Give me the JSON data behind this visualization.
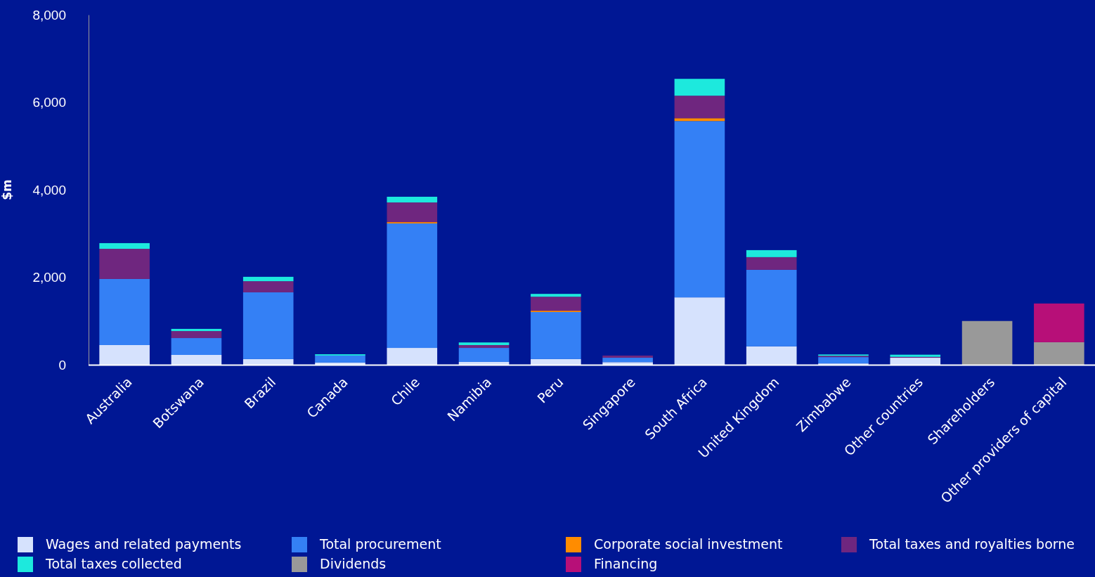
{
  "chart_data": {
    "type": "bar",
    "stacked": true,
    "ylabel": "$m",
    "ylim": [
      0,
      8000
    ],
    "yticks": [
      0,
      {
        "value": 2000,
        "label": "2,000"
      },
      {
        "value": 4000,
        "label": "4,000"
      },
      {
        "value": 6000,
        "label": "6,000"
      },
      {
        "value": 8000,
        "label": "8,000"
      }
    ],
    "grid": false,
    "legend": "bottom",
    "categories": [
      "Australia",
      "Botswana",
      "Brazil",
      "Canada",
      "Chile",
      "Namibia",
      "Peru",
      "Singapore",
      "South Africa",
      "United Kingdom",
      "Zimbabwe",
      "Other countries",
      "Shareholders",
      "Other providers of capital"
    ],
    "series": [
      {
        "name": "Wages and related payments",
        "color": "#d6e2fd",
        "values": [
          450,
          225,
          130,
          50,
          385,
          65,
          130,
          60,
          1540,
          420,
          30,
          160,
          null,
          null
        ]
      },
      {
        "name": "Total procurement",
        "color": "#3480f5",
        "values": [
          1510,
          385,
          1525,
          160,
          2845,
          320,
          1075,
          100,
          4030,
          1750,
          145,
          null,
          null,
          null
        ]
      },
      {
        "name": "Corporate social investment",
        "color": "#ff8c00",
        "values": [
          null,
          null,
          null,
          null,
          30,
          null,
          30,
          null,
          65,
          null,
          null,
          null,
          null,
          null
        ]
      },
      {
        "name": "Total taxes and royalties borne",
        "color": "#6f267f",
        "values": [
          690,
          160,
          255,
          null,
          450,
          65,
          320,
          50,
          515,
          290,
          30,
          20,
          null,
          null
        ]
      },
      {
        "name": "Total taxes collected",
        "color": "#1de9dd",
        "values": [
          130,
          50,
          100,
          30,
          130,
          60,
          65,
          null,
          385,
          160,
          30,
          50,
          null,
          null
        ]
      },
      {
        "name": "Dividends",
        "color": "#999999",
        "values": [
          null,
          null,
          null,
          null,
          null,
          null,
          null,
          null,
          null,
          null,
          null,
          null,
          1000,
          515
        ]
      },
      {
        "name": "Financing",
        "color": "#b70f78",
        "values": [
          null,
          null,
          null,
          null,
          null,
          null,
          null,
          null,
          null,
          null,
          null,
          null,
          null,
          885
        ]
      }
    ]
  }
}
